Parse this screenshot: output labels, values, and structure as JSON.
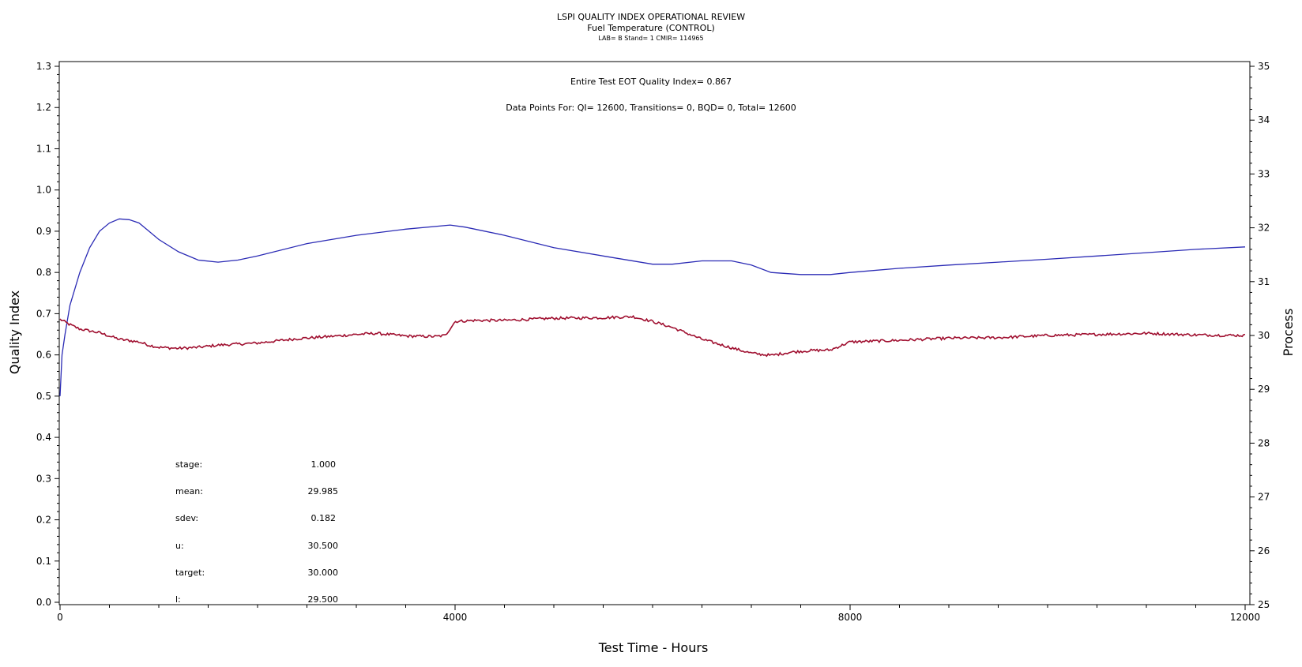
{
  "header": {
    "title": "LSPI QUALITY INDEX OPERATIONAL REVIEW",
    "subtitle": "Fuel Temperature (CONTROL)",
    "meta": "LAB= B Stand= 1 CMIR= 114965"
  },
  "annotations": {
    "eot": "Entire Test EOT Quality Index=    0.867",
    "points": "Data Points For: QI= 12600, Transitions=      0, BQD=      0, Total= 12600"
  },
  "stats": [
    {
      "label": "stage:",
      "value": "1.000"
    },
    {
      "label": "mean:",
      "value": "29.985"
    },
    {
      "label": "sdev:",
      "value": "0.182"
    },
    {
      "label": "u:",
      "value": "30.500"
    },
    {
      "label": "target:",
      "value": "30.000"
    },
    {
      "label": "l:",
      "value": "29.500"
    }
  ],
  "colors": {
    "quality_index": "#2b2bb5",
    "process": "#a01030",
    "axis": "#000000"
  },
  "chart_data": {
    "type": "line",
    "xlabel": "Test Time - Hours",
    "ylabel_left": "Quality Index",
    "ylabel_right": "Process",
    "xlim": [
      0,
      12000
    ],
    "ylim_left": [
      0.0,
      1.3
    ],
    "ylim_right": [
      25,
      35
    ],
    "x_ticks": [
      0,
      4000,
      8000,
      12000
    ],
    "y_left_ticks": [
      "0.0",
      "0.1",
      "0.2",
      "0.3",
      "0.4",
      "0.5",
      "0.6",
      "0.7",
      "0.8",
      "0.9",
      "1.0",
      "1.1",
      "1.2",
      "1.3"
    ],
    "y_right_ticks": [
      "25",
      "26",
      "27",
      "28",
      "29",
      "30",
      "31",
      "32",
      "33",
      "34",
      "35"
    ],
    "grid": false,
    "series": [
      {
        "axis": "left",
        "x": [
          0,
          20,
          50,
          100,
          200,
          300,
          400,
          500,
          600,
          700,
          800,
          900,
          1000,
          1200,
          1400,
          1600,
          1800,
          2000,
          2500,
          3000,
          3500,
          3950,
          4100,
          4500,
          5000,
          5500,
          6000,
          6200,
          6500,
          6800,
          7000,
          7200,
          7500,
          7800,
          8000,
          8500,
          9000,
          9500,
          10000,
          10500,
          11000,
          11500,
          12000
        ],
        "values": [
          0.5,
          0.6,
          0.65,
          0.72,
          0.8,
          0.86,
          0.9,
          0.92,
          0.93,
          0.928,
          0.92,
          0.9,
          0.88,
          0.85,
          0.83,
          0.825,
          0.83,
          0.84,
          0.87,
          0.89,
          0.905,
          0.915,
          0.91,
          0.89,
          0.86,
          0.84,
          0.82,
          0.82,
          0.828,
          0.828,
          0.818,
          0.8,
          0.795,
          0.795,
          0.8,
          0.81,
          0.818,
          0.825,
          0.832,
          0.84,
          0.848,
          0.856,
          0.862
        ]
      },
      {
        "axis": "right",
        "x": [
          0,
          100,
          200,
          400,
          600,
          800,
          900,
          1000,
          1200,
          1400,
          1600,
          2000,
          2400,
          2800,
          3000,
          3200,
          3500,
          3800,
          3900,
          4000,
          4200,
          4500,
          5000,
          5500,
          5800,
          6000,
          6200,
          6500,
          6800,
          7000,
          7200,
          7400,
          7600,
          7800,
          8000,
          8500,
          9000,
          9500,
          10000,
          10500,
          11000,
          11500,
          12000
        ],
        "values": [
          30.3,
          30.2,
          30.12,
          30.05,
          29.93,
          29.88,
          29.82,
          29.78,
          29.76,
          29.78,
          29.82,
          29.86,
          29.94,
          29.99,
          30.02,
          30.04,
          29.99,
          29.98,
          30.0,
          30.26,
          30.28,
          30.28,
          30.32,
          30.33,
          30.35,
          30.26,
          30.15,
          29.93,
          29.77,
          29.67,
          29.63,
          29.69,
          29.72,
          29.73,
          29.88,
          29.91,
          29.95,
          29.96,
          30.0,
          30.02,
          30.04,
          30.01,
          30.0
        ]
      }
    ]
  }
}
